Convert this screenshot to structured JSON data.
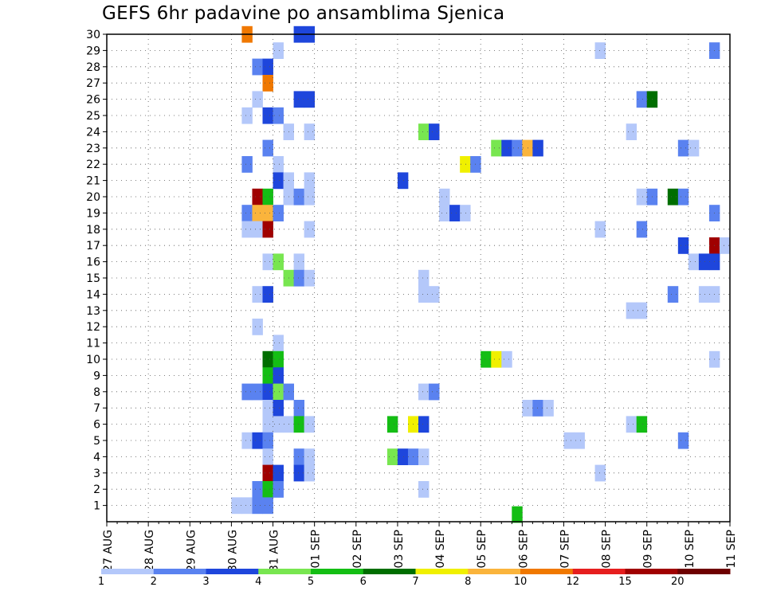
{
  "chart_data": {
    "type": "heatmap",
    "title": "GEFS 6hr padavine po ansamblima Sjenica",
    "xlabel": "",
    "ylabel": "",
    "x_tick_labels": [
      "27 AUG",
      "28 AUG",
      "29 AUG",
      "30 AUG",
      "31 AUG",
      "01 SEP",
      "02 SEP",
      "03 SEP",
      "04 SEP",
      "05 SEP",
      "06 SEP",
      "07 SEP",
      "08 SEP",
      "09 SEP",
      "10 SEP",
      "11 SEP"
    ],
    "x_step_hours": 6,
    "x_range_steps": [
      0,
      60
    ],
    "y_tick_labels": [
      "1",
      "2",
      "3",
      "4",
      "5",
      "6",
      "7",
      "8",
      "9",
      "10",
      "11",
      "12",
      "13",
      "14",
      "15",
      "16",
      "17",
      "18",
      "19",
      "20",
      "21",
      "22",
      "23",
      "24",
      "25",
      "26",
      "27",
      "28",
      "29",
      "30"
    ],
    "y_range": [
      0,
      30
    ],
    "grid": true,
    "colorbar": {
      "labels": [
        "1",
        "2",
        "3",
        "4",
        "5",
        "6",
        "7",
        "8",
        "10",
        "12",
        "15",
        "20"
      ],
      "colors": [
        "#b4c8fa",
        "#5a82f0",
        "#1e46dc",
        "#78e650",
        "#14be14",
        "#006e00",
        "#f0f000",
        "#fab43c",
        "#f07800",
        "#e61e1e",
        "#a00000",
        "#6e0000"
      ]
    },
    "cells": [
      [
        13,
        30,
        "#f07800"
      ],
      [
        18,
        30,
        "#1e46dc"
      ],
      [
        19,
        30,
        "#1e46dc"
      ],
      [
        16,
        29,
        "#b4c8fa"
      ],
      [
        47,
        29,
        "#b4c8fa"
      ],
      [
        58,
        29,
        "#5a82f0"
      ],
      [
        14,
        28,
        "#5a82f0"
      ],
      [
        15,
        28,
        "#1e46dc"
      ],
      [
        15,
        27,
        "#f07800"
      ],
      [
        14,
        26,
        "#b4c8fa"
      ],
      [
        18,
        26,
        "#1e46dc"
      ],
      [
        19,
        26,
        "#1e46dc"
      ],
      [
        51,
        26,
        "#5a82f0"
      ],
      [
        52,
        26,
        "#006e00"
      ],
      [
        13,
        25,
        "#b4c8fa"
      ],
      [
        15,
        25,
        "#1e46dc"
      ],
      [
        16,
        25,
        "#5a82f0"
      ],
      [
        17,
        24,
        "#b4c8fa"
      ],
      [
        19,
        24,
        "#b4c8fa"
      ],
      [
        30,
        24,
        "#78e650"
      ],
      [
        31,
        24,
        "#1e46dc"
      ],
      [
        50,
        24,
        "#b4c8fa"
      ],
      [
        15,
        23,
        "#5a82f0"
      ],
      [
        37,
        23,
        "#78e650"
      ],
      [
        38,
        23,
        "#1e46dc"
      ],
      [
        39,
        23,
        "#5a82f0"
      ],
      [
        40,
        23,
        "#fab43c"
      ],
      [
        41,
        23,
        "#1e46dc"
      ],
      [
        55,
        23,
        "#5a82f0"
      ],
      [
        56,
        23,
        "#b4c8fa"
      ],
      [
        13,
        22,
        "#5a82f0"
      ],
      [
        16,
        22,
        "#b4c8fa"
      ],
      [
        34,
        22,
        "#f0f000"
      ],
      [
        35,
        22,
        "#5a82f0"
      ],
      [
        16,
        21,
        "#1e46dc"
      ],
      [
        17,
        21,
        "#b4c8fa"
      ],
      [
        19,
        21,
        "#b4c8fa"
      ],
      [
        28,
        21,
        "#1e46dc"
      ],
      [
        14,
        20,
        "#a00000"
      ],
      [
        15,
        20,
        "#14be14"
      ],
      [
        17,
        20,
        "#b4c8fa"
      ],
      [
        18,
        20,
        "#5a82f0"
      ],
      [
        19,
        20,
        "#b4c8fa"
      ],
      [
        32,
        20,
        "#b4c8fa"
      ],
      [
        51,
        20,
        "#b4c8fa"
      ],
      [
        52,
        20,
        "#5a82f0"
      ],
      [
        54,
        20,
        "#006e00"
      ],
      [
        55,
        20,
        "#5a82f0"
      ],
      [
        13,
        19,
        "#5a82f0"
      ],
      [
        14,
        19,
        "#fab43c"
      ],
      [
        15,
        19,
        "#fab43c"
      ],
      [
        16,
        19,
        "#5a82f0"
      ],
      [
        32,
        19,
        "#b4c8fa"
      ],
      [
        33,
        19,
        "#1e46dc"
      ],
      [
        34,
        19,
        "#b4c8fa"
      ],
      [
        58,
        19,
        "#5a82f0"
      ],
      [
        13,
        18,
        "#b4c8fa"
      ],
      [
        14,
        18,
        "#b4c8fa"
      ],
      [
        15,
        18,
        "#a00000"
      ],
      [
        19,
        18,
        "#b4c8fa"
      ],
      [
        47,
        18,
        "#b4c8fa"
      ],
      [
        51,
        18,
        "#5a82f0"
      ],
      [
        55,
        17,
        "#1e46dc"
      ],
      [
        58,
        17,
        "#a00000"
      ],
      [
        59,
        17,
        "#b4c8fa"
      ],
      [
        15,
        16,
        "#b4c8fa"
      ],
      [
        16,
        16,
        "#78e650"
      ],
      [
        18,
        16,
        "#b4c8fa"
      ],
      [
        56,
        16,
        "#b4c8fa"
      ],
      [
        57,
        16,
        "#1e46dc"
      ],
      [
        58,
        16,
        "#1e46dc"
      ],
      [
        17,
        15,
        "#78e650"
      ],
      [
        18,
        15,
        "#5a82f0"
      ],
      [
        19,
        15,
        "#b4c8fa"
      ],
      [
        30,
        15,
        "#b4c8fa"
      ],
      [
        14,
        14,
        "#b4c8fa"
      ],
      [
        15,
        14,
        "#1e46dc"
      ],
      [
        30,
        14,
        "#b4c8fa"
      ],
      [
        31,
        14,
        "#b4c8fa"
      ],
      [
        54,
        14,
        "#5a82f0"
      ],
      [
        57,
        14,
        "#b4c8fa"
      ],
      [
        58,
        14,
        "#b4c8fa"
      ],
      [
        50,
        13,
        "#b4c8fa"
      ],
      [
        51,
        13,
        "#b4c8fa"
      ],
      [
        14,
        12,
        "#b4c8fa"
      ],
      [
        16,
        11,
        "#b4c8fa"
      ],
      [
        15,
        10,
        "#006e00"
      ],
      [
        16,
        10,
        "#14be14"
      ],
      [
        36,
        10,
        "#14be14"
      ],
      [
        37,
        10,
        "#f0f000"
      ],
      [
        38,
        10,
        "#b4c8fa"
      ],
      [
        58,
        10,
        "#b4c8fa"
      ],
      [
        15,
        9,
        "#14be14"
      ],
      [
        16,
        9,
        "#1e46dc"
      ],
      [
        13,
        8,
        "#5a82f0"
      ],
      [
        14,
        8,
        "#5a82f0"
      ],
      [
        15,
        8,
        "#1e46dc"
      ],
      [
        16,
        8,
        "#78e650"
      ],
      [
        17,
        8,
        "#5a82f0"
      ],
      [
        30,
        8,
        "#b4c8fa"
      ],
      [
        31,
        8,
        "#5a82f0"
      ],
      [
        15,
        7,
        "#b4c8fa"
      ],
      [
        16,
        7,
        "#1e46dc"
      ],
      [
        18,
        7,
        "#5a82f0"
      ],
      [
        40,
        7,
        "#b4c8fa"
      ],
      [
        41,
        7,
        "#5a82f0"
      ],
      [
        42,
        7,
        "#b4c8fa"
      ],
      [
        15,
        6,
        "#b4c8fa"
      ],
      [
        16,
        6,
        "#b4c8fa"
      ],
      [
        17,
        6,
        "#b4c8fa"
      ],
      [
        18,
        6,
        "#14be14"
      ],
      [
        19,
        6,
        "#b4c8fa"
      ],
      [
        27,
        6,
        "#14be14"
      ],
      [
        29,
        6,
        "#f0f000"
      ],
      [
        30,
        6,
        "#1e46dc"
      ],
      [
        50,
        6,
        "#b4c8fa"
      ],
      [
        51,
        6,
        "#14be14"
      ],
      [
        13,
        5,
        "#b4c8fa"
      ],
      [
        14,
        5,
        "#1e46dc"
      ],
      [
        15,
        5,
        "#5a82f0"
      ],
      [
        44,
        5,
        "#b4c8fa"
      ],
      [
        45,
        5,
        "#b4c8fa"
      ],
      [
        55,
        5,
        "#5a82f0"
      ],
      [
        15,
        4,
        "#b4c8fa"
      ],
      [
        18,
        4,
        "#5a82f0"
      ],
      [
        19,
        4,
        "#b4c8fa"
      ],
      [
        27,
        4,
        "#78e650"
      ],
      [
        28,
        4,
        "#1e46dc"
      ],
      [
        29,
        4,
        "#5a82f0"
      ],
      [
        30,
        4,
        "#b4c8fa"
      ],
      [
        15,
        3,
        "#a00000"
      ],
      [
        16,
        3,
        "#1e46dc"
      ],
      [
        18,
        3,
        "#1e46dc"
      ],
      [
        19,
        3,
        "#b4c8fa"
      ],
      [
        47,
        3,
        "#b4c8fa"
      ],
      [
        14,
        2,
        "#5a82f0"
      ],
      [
        15,
        2,
        "#14be14"
      ],
      [
        16,
        2,
        "#5a82f0"
      ],
      [
        30,
        2,
        "#b4c8fa"
      ],
      [
        12,
        1,
        "#b4c8fa"
      ],
      [
        13,
        1,
        "#b4c8fa"
      ],
      [
        14,
        1,
        "#5a82f0"
      ],
      [
        15,
        1,
        "#5a82f0"
      ],
      [
        39,
        0.45,
        "#14be14"
      ]
    ]
  }
}
